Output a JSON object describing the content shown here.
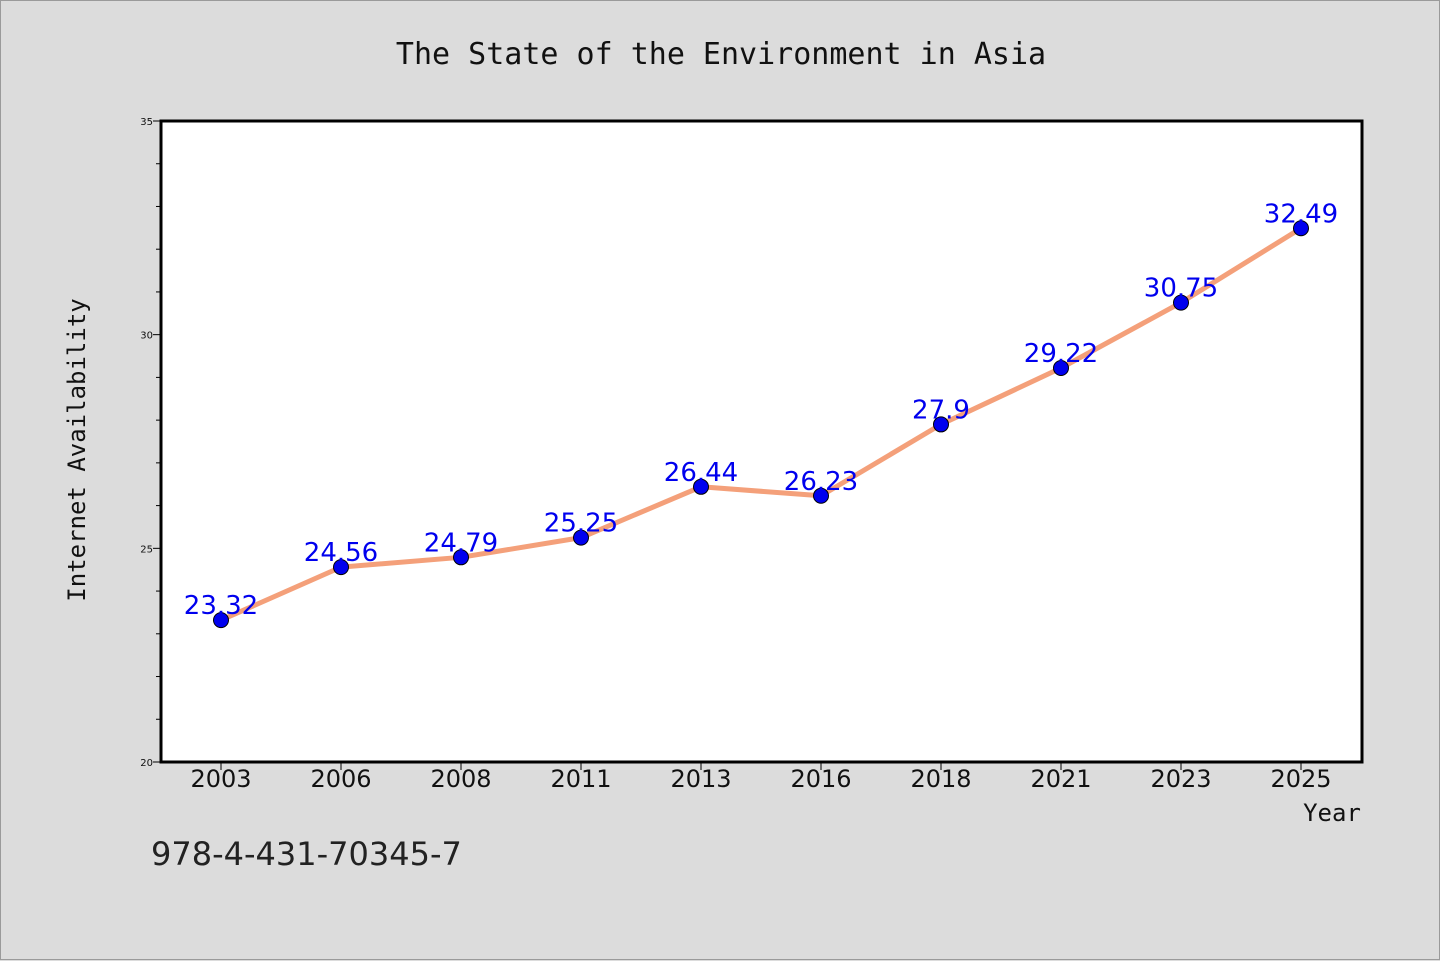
{
  "chart_data": {
    "type": "line",
    "title": "The State of the Environment in Asia",
    "xlabel": "Year",
    "ylabel": "Internet Availability",
    "categories": [
      "2003",
      "2006",
      "2008",
      "2011",
      "2013",
      "2016",
      "2018",
      "2021",
      "2023",
      "2025"
    ],
    "series": [
      {
        "values": [
          23.32,
          24.56,
          24.79,
          25.25,
          26.44,
          26.23,
          27.9,
          29.22,
          30.75,
          32.49
        ],
        "data_labels": [
          "23.32",
          "24.56",
          "24.79",
          "25.25",
          "26.44",
          "26.23",
          "27.9",
          "29.22",
          "30.75",
          "32.49"
        ],
        "line_color": "#f4a07a",
        "marker_color": "#0000ee"
      }
    ],
    "ylim": [
      20,
      35
    ],
    "yticks": [
      20,
      25,
      30,
      35
    ],
    "ytick_labels": [
      "20",
      "25",
      "30",
      "35"
    ],
    "grid": false,
    "legend": "none",
    "label_color": "#0000ee"
  },
  "footer": {
    "isbn": "978-4-431-70345-7"
  },
  "colors": {
    "background": "#dcdcdc",
    "plot_area": "#ffffff"
  }
}
